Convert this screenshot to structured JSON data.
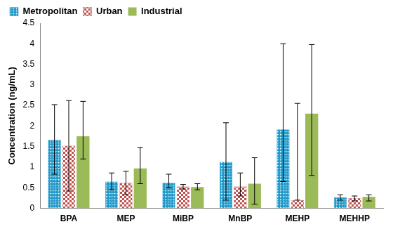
{
  "chart_data": {
    "type": "bar",
    "y_label": "Concentration (ng/mL)",
    "categories": [
      "BPA",
      "MEP",
      "MiBP",
      "MnBP",
      "MEHP",
      "MEHHP"
    ],
    "series": [
      {
        "name": "Metropolitan",
        "color": "#1f9ac9",
        "values": [
          1.67,
          0.65,
          0.62,
          1.13,
          1.92,
          0.27
        ],
        "error_low": [
          0.83,
          0.45,
          0.5,
          0.2,
          0.65,
          0.2
        ],
        "error_high": [
          2.52,
          0.86,
          0.83,
          2.08,
          4.0,
          0.33
        ]
      },
      {
        "name": "Urban",
        "color": "#c0504d",
        "values": [
          1.52,
          0.62,
          0.53,
          0.53,
          0.2,
          0.25
        ],
        "error_low": [
          0.42,
          0.33,
          0.47,
          0.3,
          0.2,
          0.18
        ],
        "error_high": [
          2.62,
          0.9,
          0.58,
          0.86,
          2.55,
          0.3
        ]
      },
      {
        "name": "Industrial",
        "color": "#9bbb59",
        "values": [
          1.75,
          0.97,
          0.52,
          0.6,
          2.3,
          0.28
        ],
        "error_low": [
          1.2,
          0.6,
          0.45,
          0.1,
          0.8,
          0.18
        ],
        "error_high": [
          2.6,
          1.48,
          0.6,
          1.23,
          3.98,
          0.33
        ]
      }
    ],
    "ylim": [
      0,
      4.5
    ],
    "yticks": [
      0,
      0.5,
      1,
      1.5,
      2,
      2.5,
      3,
      3.5,
      4,
      4.5
    ],
    "grid": false,
    "legend": "top-left"
  }
}
